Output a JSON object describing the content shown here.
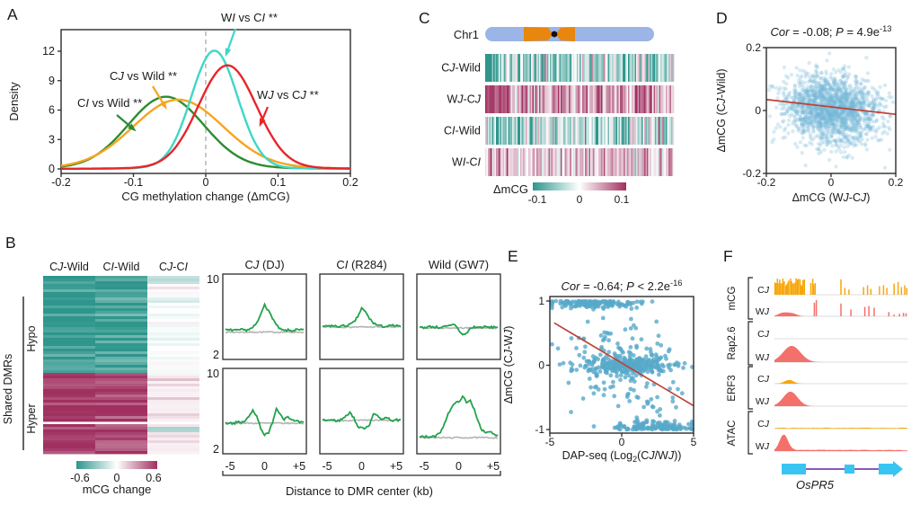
{
  "panels": {
    "A": {
      "letter": "A",
      "ylabel": "Density",
      "xlabel": "CG methylation change (ΔmCG)"
    },
    "B": {
      "letter": "B",
      "side_label": "Shared DMRs",
      "group_hypo": "Hypo",
      "group_hyper": "Hyper",
      "colorbar_label": "mCG change",
      "xlabel": "Distance to DMR center (kb)"
    },
    "C": {
      "letter": "C",
      "chromosome_label": "Chr1",
      "colorbar_label": "ΔmCG"
    },
    "D": {
      "letter": "D"
    },
    "E": {
      "letter": "E"
    },
    "F": {
      "letter": "F",
      "groups": [
        "mCG",
        "Rap2.6",
        "ERF3",
        "ATAC"
      ],
      "gene_label": "OsPR5"
    }
  },
  "chart_data": [
    {
      "id": "A",
      "type": "line",
      "subtype": "density",
      "title": "",
      "xlabel": "CG methylation change (ΔmCG)",
      "ylabel": "Density",
      "xlim": [
        -0.2,
        0.2
      ],
      "ylim": [
        0,
        12
      ],
      "xticks": [
        -0.2,
        -0.1,
        0,
        0.1,
        0.2
      ],
      "yticks": [
        0,
        3,
        6,
        9,
        12
      ],
      "zero_dashed_line": true,
      "grid": false,
      "series": [
        {
          "name": "CI vs Wild **",
          "color": "#2e8b30",
          "mean": -0.055,
          "sd": 0.052,
          "peak": 7.2
        },
        {
          "name": "CJ vs Wild **",
          "color": "#f6a51e",
          "mean": -0.038,
          "sd": 0.062,
          "peak": 6.9
        },
        {
          "name": "WI vs CI **",
          "color": "#3fd7c6",
          "mean": 0.012,
          "sd": 0.032,
          "peak": 11.9
        },
        {
          "name": "WJ vs CJ **",
          "color": "#e7262a",
          "mean": 0.03,
          "sd": 0.04,
          "peak": 10.4
        }
      ]
    },
    {
      "id": "B_heatmap",
      "type": "heatmap",
      "columns": [
        "CJ-Wild",
        "CI-Wild",
        "CJ-CI"
      ],
      "side_label": "Shared DMRs",
      "groups": [
        {
          "name": "Hypo",
          "rows": 36,
          "col_means": [
            -0.57,
            -0.53,
            -0.03
          ]
        },
        {
          "name": "Hyper",
          "rows": 30,
          "col_means": [
            0.6,
            0.55,
            0.04
          ]
        }
      ],
      "vlim": [
        -0.6,
        0.6
      ],
      "colorbar": {
        "ticks": [
          -0.6,
          0,
          0.6
        ],
        "label": "mCG change"
      },
      "neg_color": "#2e968c",
      "pos_color": "#a03060"
    },
    {
      "id": "B_profiles",
      "type": "line",
      "subtype": "metaplot-grid",
      "col_titles": [
        "CJ (DJ)",
        "CI (R284)",
        "Wild (GW7)"
      ],
      "ylim": [
        2,
        10
      ],
      "yticks": [
        10,
        2
      ],
      "xticks": [
        "-5",
        "0",
        "+5"
      ],
      "xlabel": "Distance to DMR center (kb)",
      "line_color": "#22a24c",
      "control_color": "#b3b3b3",
      "rows": [
        {
          "name": "Hypo",
          "plots": [
            [
              4.6,
              4.55,
              4.6,
              4.5,
              4.6,
              4.55,
              4.65,
              4.8,
              5.3,
              6.2,
              7.4,
              6.6,
              5.9,
              5.1,
              4.65,
              4.5,
              4.55,
              4.5,
              4.6,
              4.55,
              4.6
            ],
            [
              5.0,
              4.95,
              5.05,
              5.0,
              4.95,
              5.0,
              5.05,
              5.15,
              5.4,
              6.0,
              6.9,
              6.5,
              5.8,
              5.35,
              5.1,
              5.0,
              4.95,
              5.0,
              5.05,
              5.0,
              4.95
            ],
            [
              4.9,
              4.85,
              4.9,
              4.95,
              4.9,
              4.85,
              4.9,
              4.95,
              5.05,
              5.2,
              4.6,
              4.05,
              4.2,
              4.75,
              4.9,
              4.85,
              4.9,
              4.9,
              4.85,
              4.9,
              4.9
            ]
          ],
          "gray": [
            4.35,
            4.9,
            4.8
          ]
        },
        {
          "name": "Hyper",
          "plots": [
            [
              4.7,
              4.75,
              4.7,
              4.8,
              4.75,
              4.95,
              5.4,
              6.1,
              5.5,
              4.2,
              3.45,
              3.6,
              4.8,
              6.3,
              5.7,
              5.15,
              5.45,
              5.0,
              4.9,
              4.8,
              4.75
            ],
            [
              5.1,
              5.0,
              5.05,
              5.0,
              4.95,
              5.15,
              5.45,
              5.9,
              5.25,
              4.35,
              4.15,
              4.25,
              4.5,
              5.8,
              5.45,
              5.1,
              5.35,
              5.15,
              5.0,
              5.05,
              5.0
            ],
            [
              3.3,
              3.2,
              3.25,
              3.2,
              3.3,
              3.55,
              4.3,
              5.4,
              6.3,
              6.8,
              7.0,
              7.6,
              6.9,
              7.1,
              6.2,
              4.9,
              3.95,
              3.6,
              3.8,
              3.5,
              3.4
            ]
          ],
          "gray": [
            4.7,
            5.0,
            3.15
          ]
        }
      ]
    },
    {
      "id": "C",
      "type": "heatmap",
      "subtype": "chromosome-tracks",
      "chromosome": "Chr1",
      "chrom_color": "#9ab5e6",
      "centromere_color": "#e8860e",
      "rows": [
        {
          "name": "CJ-Wild",
          "mean": -0.045,
          "sd": 0.05
        },
        {
          "name": "WJ-CJ",
          "mean": 0.055,
          "sd": 0.04
        },
        {
          "name": "CI-Wild",
          "mean": -0.04,
          "sd": 0.05
        },
        {
          "name": "WI-CI",
          "mean": 0.035,
          "sd": 0.035
        }
      ],
      "vlim": [
        -0.12,
        0.12
      ],
      "colorbar": {
        "ticks": [
          -0.1,
          0,
          0.1
        ],
        "label": "ΔmCG"
      },
      "neg_color": "#2e968c",
      "pos_color": "#a03060"
    },
    {
      "id": "D",
      "type": "scatter",
      "title_parts": [
        {
          "t": "Cor",
          "i": 1
        },
        {
          "t": " = -0.08; "
        },
        {
          "t": "P",
          "i": 1
        },
        {
          "t": " = 4.9e"
        },
        {
          "t": "-13",
          "sup": 1
        }
      ],
      "correlation": -0.08,
      "p_value": "4.9e-13",
      "xlabel": "ΔmCG (WJ-CJ)",
      "ylabel": "ΔmCG (CJ-Wild)",
      "xlim": [
        -0.2,
        0.2
      ],
      "ylim": [
        -0.2,
        0.2
      ],
      "xticks": [
        -0.2,
        0,
        0.2
      ],
      "yticks": [
        0.2,
        0,
        -0.2
      ],
      "point_color": "#74b7d6",
      "cloud": {
        "n": 1600,
        "sx": 0.075,
        "sy": 0.052,
        "slope": -0.09
      },
      "fringe": {
        "n": 130,
        "sx": 0.11,
        "sy": 0.075
      },
      "fit_line": {
        "x1": -0.2,
        "y1": 0.035,
        "x2": 0.2,
        "y2": -0.012,
        "color": "#bf4136"
      }
    },
    {
      "id": "E",
      "type": "scatter",
      "title_parts": [
        {
          "t": "Cor",
          "i": 1
        },
        {
          "t": " = -0.64; "
        },
        {
          "t": "P",
          "i": 1
        },
        {
          "t": " < 2.2e"
        },
        {
          "t": "-16",
          "sup": 1
        }
      ],
      "correlation": -0.64,
      "p_value": "< 2.2e-16",
      "xlabel_parts": [
        {
          "t": "DAP-seq (Log"
        },
        {
          "t": "2",
          "sub": 1
        },
        {
          "t": "(C"
        },
        {
          "t": "J",
          "i": 1
        },
        {
          "t": "/W"
        },
        {
          "t": "J",
          "i": 1
        },
        {
          "t": "))"
        }
      ],
      "ylabel": "ΔmCG (CJ-WJ)",
      "xlim": [
        -5,
        5
      ],
      "ylim": [
        -1,
        1
      ],
      "xticks": [
        -5,
        0,
        5
      ],
      "yticks": [
        1,
        0,
        -1
      ],
      "point_color": "#58a9c9",
      "bands": [
        {
          "band": 0,
          "n": 260,
          "cx": 0.4,
          "sx": 1.6
        },
        {
          "band": 1,
          "n": 150,
          "cx": -2.1,
          "sx": 1.7
        },
        {
          "band": -1,
          "n": 130,
          "cx": 2.3,
          "sx": 1.7
        },
        {
          "band": null,
          "n": 170,
          "cx": 0.3,
          "sx": 2.1,
          "slope": -0.13,
          "sy": 0.42
        }
      ],
      "fit_line": {
        "x1": -4.7,
        "y1": 0.66,
        "x2": 5.0,
        "y2": -0.63,
        "color": "#bf4136"
      }
    },
    {
      "id": "F",
      "type": "tracks",
      "groups": [
        {
          "name": "mCG",
          "tracks": [
            {
              "label": "CJ",
              "color": "#f6a70b",
              "style": "bars",
              "clusters": [
                {
                  "from": 0.0,
                  "to": 0.23,
                  "n": 26,
                  "hmin": 0.5,
                  "hmax": 1.0
                },
                {
                  "from": 0.27,
                  "to": 0.315,
                  "n": 4,
                  "hmin": 0.6,
                  "hmax": 1.0
                }
              ],
              "bars": [
                [
                  0.5,
                  0.9
                ],
                [
                  0.53,
                  0.4
                ],
                [
                  0.56,
                  0.3
                ],
                [
                  0.67,
                  0.45
                ],
                [
                  0.7,
                  0.55
                ],
                [
                  0.725,
                  0.35
                ],
                [
                  0.79,
                  0.5
                ],
                [
                  0.82,
                  0.55
                ],
                [
                  0.845,
                  0.4
                ],
                [
                  0.9,
                  0.65
                ],
                [
                  0.93,
                  0.75
                ],
                [
                  0.955,
                  0.45
                ],
                [
                  0.98,
                  0.55
                ],
                [
                  0.995,
                  0.4
                ]
              ]
            },
            {
              "label": "WJ",
              "color": "#f4706a",
              "style": "bars",
              "peaks": [
                {
                  "c": 0.07,
                  "w": 0.1,
                  "h": 0.22
                },
                {
                  "c": 0.14,
                  "w": 0.08,
                  "h": 0.14
                }
              ],
              "bars": [
                [
                  0.3,
                  0.8
                ],
                [
                  0.315,
                  0.95
                ],
                [
                  0.5,
                  0.75
                ],
                [
                  0.575,
                  0.4
                ],
                [
                  0.68,
                  0.55
                ],
                [
                  0.71,
                  0.6
                ],
                [
                  0.75,
                  0.5
                ],
                [
                  0.86,
                  0.25
                ],
                [
                  0.9,
                  0.1
                ],
                [
                  0.94,
                  0.15
                ],
                [
                  0.97,
                  0.2
                ],
                [
                  0.99,
                  0.18
                ]
              ]
            }
          ]
        },
        {
          "name": "Rap2.6",
          "tracks": [
            {
              "label": "CJ",
              "color": "#f6a70b",
              "style": "peaks",
              "peaks": []
            },
            {
              "label": "WJ",
              "color": "#f4706a",
              "style": "peaks",
              "peaks": [
                {
                  "c": 0.13,
                  "w": 0.17,
                  "h": 0.95
                }
              ]
            }
          ]
        },
        {
          "name": "ERF3",
          "tracks": [
            {
              "label": "CJ",
              "color": "#f6a70b",
              "style": "peaks",
              "peaks": [
                {
                  "c": 0.11,
                  "w": 0.09,
                  "h": 0.22
                }
              ]
            },
            {
              "label": "WJ",
              "color": "#f4706a",
              "style": "peaks",
              "peaks": [
                {
                  "c": 0.12,
                  "w": 0.14,
                  "h": 0.85
                }
              ]
            }
          ]
        },
        {
          "name": "ATAC",
          "tracks": [
            {
              "label": "CJ",
              "color": "#f6a70b",
              "style": "peaks",
              "noise": 0.07,
              "peaks": []
            },
            {
              "label": "WJ",
              "color": "#f4706a",
              "style": "peaks",
              "noise": 0.1,
              "peaks": [
                {
                  "c": 0.07,
                  "w": 0.08,
                  "h": 0.92
                }
              ]
            }
          ]
        }
      ],
      "gene": {
        "name": "OsPR5",
        "exon_color": "#39c5f1",
        "intron_color": "#7d3fb0"
      }
    }
  ]
}
